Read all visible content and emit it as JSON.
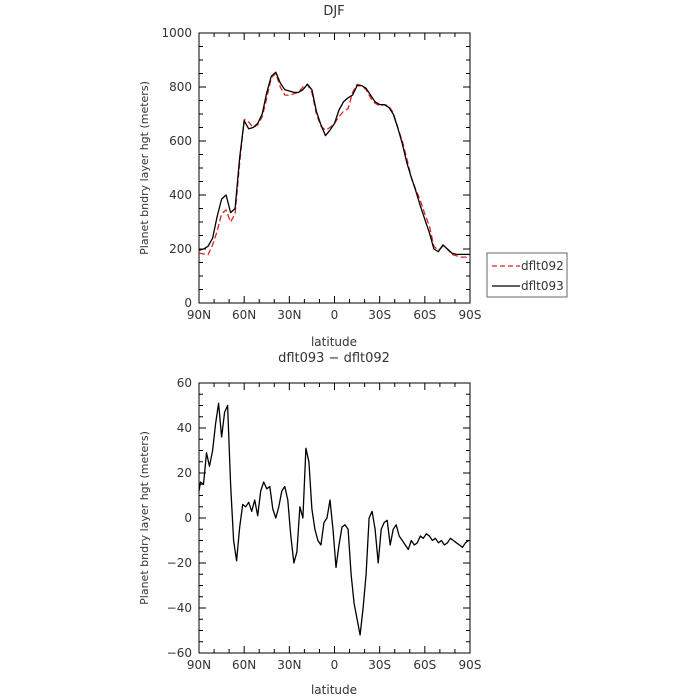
{
  "chart_data": [
    {
      "type": "line",
      "title": "DJF",
      "xlabel": "latitude",
      "ylabel": "Planet bndry layer hgt (meters)",
      "xlim": [
        90,
        -90
      ],
      "ylim": [
        0,
        1000
      ],
      "x_ticks": [
        90,
        60,
        30,
        0,
        -30,
        -60,
        -90
      ],
      "x_tick_labels": [
        "90N",
        "60N",
        "30N",
        "0",
        "30S",
        "60S",
        "90S"
      ],
      "y_ticks": [
        0,
        200,
        400,
        600,
        800,
        1000
      ],
      "y_tick_labels": [
        "0",
        "200",
        "400",
        "600",
        "800",
        "1000"
      ],
      "legend_position": "right",
      "x": [
        90,
        87,
        84,
        81,
        78,
        75,
        72,
        69,
        66,
        63,
        60,
        57,
        54,
        51,
        48,
        45,
        42,
        39,
        36,
        33,
        30,
        27,
        24,
        21,
        18,
        15,
        12,
        9,
        6,
        3,
        0,
        -3,
        -6,
        -9,
        -12,
        -15,
        -18,
        -21,
        -24,
        -27,
        -30,
        -33,
        -36,
        -39,
        -42,
        -45,
        -48,
        -51,
        -54,
        -57,
        -60,
        -63,
        -66,
        -69,
        -72,
        -75,
        -78,
        -81,
        -84,
        -87,
        -90
      ],
      "series": [
        {
          "name": "dflt092",
          "color": "#dd2222",
          "dash": "dashed",
          "values": [
            185,
            182,
            178,
            215,
            265,
            330,
            345,
            300,
            330,
            520,
            680,
            670,
            650,
            660,
            690,
            760,
            835,
            850,
            800,
            770,
            770,
            775,
            780,
            800,
            810,
            780,
            700,
            655,
            640,
            650,
            665,
            690,
            710,
            720,
            780,
            810,
            805,
            790,
            760,
            740,
            730,
            735,
            730,
            705,
            650,
            600,
            535,
            465,
            420,
            380,
            330,
            285,
            210,
            195,
            210,
            200,
            180,
            175,
            170,
            170,
            170
          ]
        },
        {
          "name": "dflt093",
          "color": "#000000",
          "dash": "solid",
          "values": [
            195,
            200,
            210,
            240,
            320,
            385,
            400,
            335,
            350,
            540,
            675,
            645,
            650,
            665,
            700,
            780,
            840,
            855,
            815,
            790,
            785,
            780,
            780,
            790,
            810,
            790,
            710,
            660,
            620,
            640,
            665,
            715,
            745,
            760,
            770,
            805,
            805,
            795,
            770,
            745,
            735,
            735,
            725,
            700,
            650,
            590,
            520,
            465,
            415,
            360,
            310,
            260,
            200,
            190,
            215,
            200,
            185,
            180,
            180,
            180,
            180
          ]
        }
      ]
    },
    {
      "type": "line",
      "title": "dflt093 − dflt092",
      "xlabel": "latitude",
      "ylabel": "Planet bndry layer hgt (meters)",
      "xlim": [
        90,
        -90
      ],
      "ylim": [
        -60,
        60
      ],
      "x_ticks": [
        90,
        60,
        30,
        0,
        -30,
        -60,
        -90
      ],
      "x_tick_labels": [
        "90N",
        "60N",
        "30N",
        "0",
        "30S",
        "60S",
        "90S"
      ],
      "y_ticks": [
        -60,
        -40,
        -20,
        0,
        20,
        40,
        60
      ],
      "y_tick_labels": [
        "−60",
        "−40",
        "−20",
        "0",
        "20",
        "40",
        "60"
      ],
      "x": [
        90,
        89,
        87,
        85,
        83,
        81,
        79,
        77,
        75,
        73,
        71,
        69,
        67,
        65,
        63,
        61,
        59,
        57,
        55,
        53,
        51,
        49,
        47,
        45,
        43,
        41,
        39,
        37,
        35,
        33,
        31,
        29,
        27,
        25,
        23,
        21,
        19,
        17,
        15,
        13,
        11,
        9,
        7,
        5,
        3,
        1,
        -1,
        -3,
        -5,
        -7,
        -9,
        -11,
        -13,
        -15,
        -17,
        -19,
        -21,
        -23,
        -25,
        -27,
        -29,
        -31,
        -33,
        -35,
        -37,
        -39,
        -41,
        -43,
        -45,
        -47,
        -49,
        -51,
        -53,
        -55,
        -57,
        -59,
        -61,
        -63,
        -65,
        -67,
        -69,
        -71,
        -73,
        -75,
        -77,
        -79,
        -81,
        -83,
        -85,
        -87,
        -89,
        -90
      ],
      "series": [
        {
          "name": "",
          "color": "#000000",
          "dash": "solid",
          "values": [
            12,
            16,
            15,
            29,
            23,
            30,
            42,
            51,
            36,
            47,
            50,
            15,
            -10,
            -19,
            -4,
            6,
            5,
            7,
            3,
            8,
            1,
            12,
            16,
            13,
            14,
            4,
            0,
            5,
            12,
            14,
            8,
            -8,
            -20,
            -15,
            5,
            0,
            31,
            25,
            4,
            -5,
            -10,
            -12,
            -2,
            0,
            8,
            -5,
            -22,
            -12,
            -4,
            -3,
            -5,
            -25,
            -38,
            -45,
            -52,
            -40,
            -25,
            0,
            3,
            -5,
            -20,
            -5,
            -2,
            -1,
            -12,
            -5,
            -3,
            -8,
            -10,
            -12,
            -14,
            -10,
            -12,
            -11,
            -8,
            -9,
            -7,
            -8,
            -10,
            -9,
            -11,
            -10,
            -12,
            -11,
            -9,
            -10,
            -11,
            -12,
            -13,
            -11,
            -10,
            -10
          ]
        }
      ]
    }
  ]
}
